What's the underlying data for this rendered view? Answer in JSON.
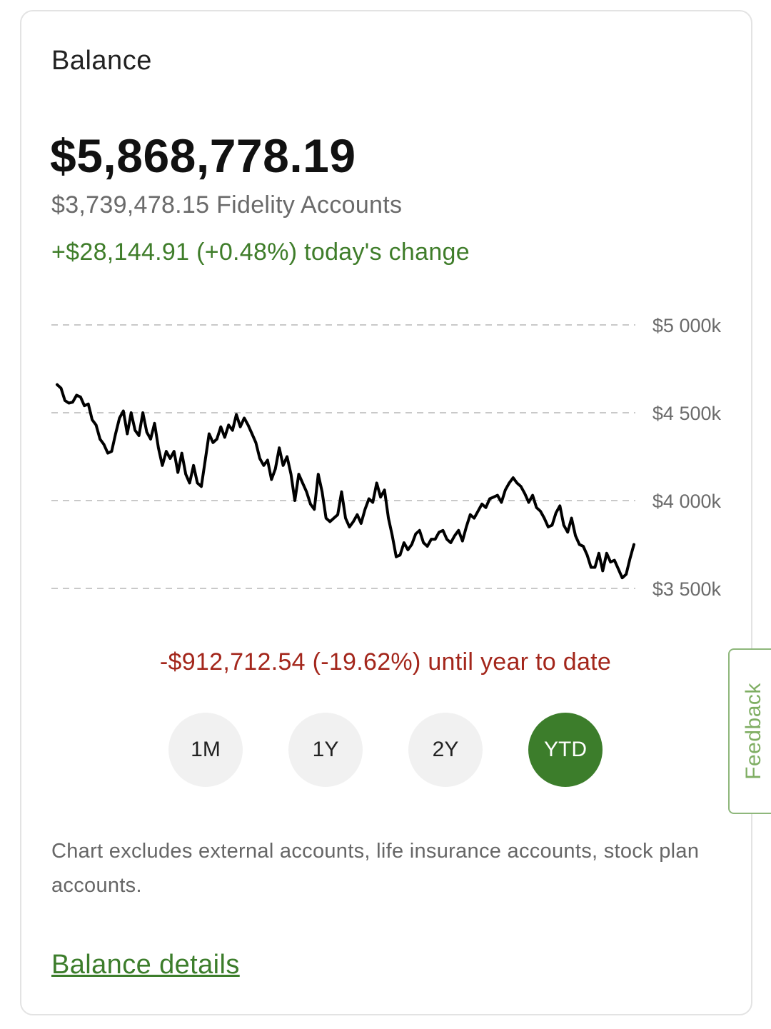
{
  "card": {
    "title": "Balance",
    "total_balance": "$5,868,778.19",
    "fidelity_accounts": "$3,739,478.15 Fidelity Accounts",
    "todays_change": "+$28,144.91 (+0.48%) today's change",
    "ytd_change": "-$912,712.54 (-19.62%) until year to date",
    "disclaimer": "Chart excludes external accounts, life insurance accounts, stock plan accounts.",
    "details_link": "Balance details"
  },
  "range_buttons": [
    {
      "label": "1M",
      "active": false
    },
    {
      "label": "1Y",
      "active": false
    },
    {
      "label": "2Y",
      "active": false
    },
    {
      "label": "YTD",
      "active": true
    }
  ],
  "feedback_tab": {
    "label": "Feedback"
  },
  "colors": {
    "positive": "#3f7d2a",
    "negative": "#a3261b",
    "accent": "#3c7d2b",
    "line": "#000000"
  },
  "chart_data": {
    "type": "line",
    "range": "YTD",
    "ylim": [
      3500,
      5000
    ],
    "y_unit": "k",
    "y_ticks": [
      "$5 000k",
      "$4 500k",
      "$4 000k",
      "$3 500k"
    ],
    "grid": true,
    "series": [
      {
        "values": [
          4660,
          4640,
          4570,
          4555,
          4560,
          4600,
          4590,
          4540,
          4550,
          4460,
          4430,
          4350,
          4320,
          4270,
          4280,
          4380,
          4470,
          4510,
          4380,
          4500,
          4400,
          4370,
          4500,
          4390,
          4350,
          4440,
          4300,
          4200,
          4280,
          4240,
          4280,
          4160,
          4270,
          4150,
          4100,
          4200,
          4100,
          4080,
          4230,
          4380,
          4330,
          4350,
          4420,
          4360,
          4430,
          4400,
          4490,
          4420,
          4470,
          4430,
          4380,
          4330,
          4240,
          4200,
          4230,
          4120,
          4180,
          4300,
          4200,
          4250,
          4150,
          4000,
          4150,
          4100,
          4050,
          3980,
          3950,
          4150,
          4050,
          3900,
          3880,
          3900,
          3920,
          4050,
          3900,
          3850,
          3880,
          3920,
          3870,
          3950,
          4010,
          3990,
          4100,
          4020,
          4060,
          3900,
          3800,
          3680,
          3690,
          3760,
          3720,
          3750,
          3810,
          3830,
          3760,
          3740,
          3780,
          3780,
          3820,
          3830,
          3780,
          3760,
          3800,
          3830,
          3770,
          3850,
          3920,
          3900,
          3940,
          3980,
          3960,
          4010,
          4020,
          4030,
          3990,
          4060,
          4100,
          4130,
          4100,
          4080,
          4040,
          3990,
          4030,
          3960,
          3940,
          3900,
          3850,
          3860,
          3930,
          3970,
          3860,
          3820,
          3900,
          3800,
          3750,
          3740,
          3690,
          3620,
          3620,
          3700,
          3600,
          3700,
          3650,
          3660,
          3610,
          3560,
          3580,
          3670,
          3750
        ]
      }
    ]
  }
}
